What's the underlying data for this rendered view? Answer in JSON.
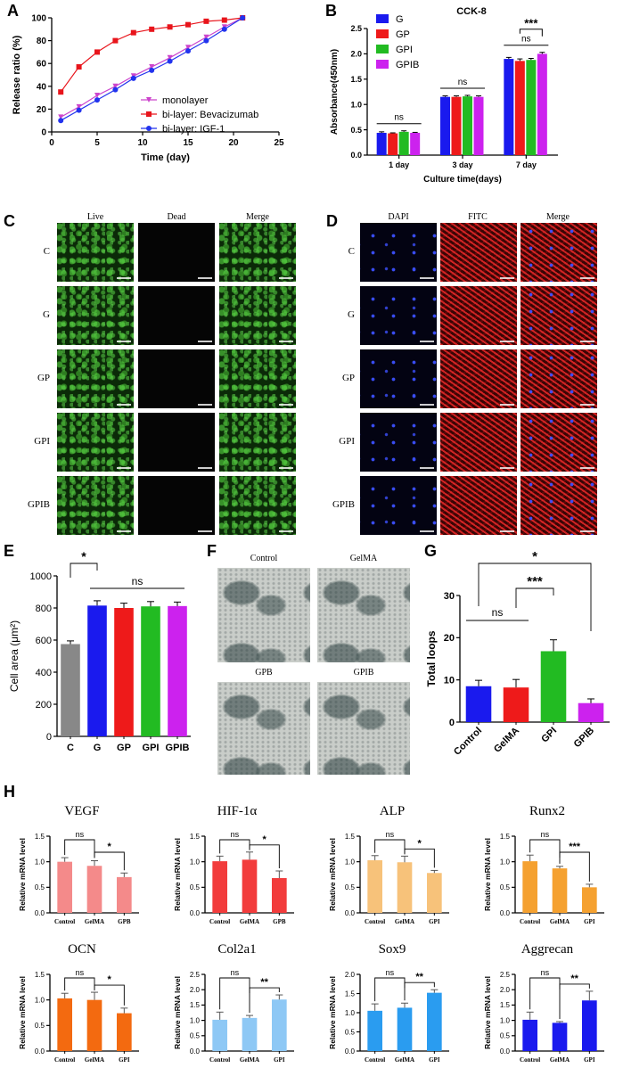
{
  "panel_labels": [
    "A",
    "B",
    "C",
    "D",
    "E",
    "F",
    "G",
    "H"
  ],
  "panel_c": {
    "columns": [
      "Live",
      "Dead",
      "Merge"
    ],
    "rows": [
      "C",
      "G",
      "GP",
      "GPI",
      "GPIB"
    ]
  },
  "panel_d": {
    "columns": [
      "DAPI",
      "FITC",
      "Merge"
    ],
    "rows": [
      "C",
      "G",
      "GP",
      "GPI",
      "GPIB"
    ]
  },
  "panel_f": {
    "images": [
      "Control",
      "GelMA",
      "GPB",
      "GPIB"
    ]
  },
  "chart_data": [
    {
      "id": "A",
      "type": "line",
      "xlabel": "Time (day)",
      "ylabel": "Release ratio (%)",
      "xlim": [
        0,
        25
      ],
      "ylim": [
        0,
        100
      ],
      "xticks": [
        0,
        5,
        10,
        15,
        20,
        25
      ],
      "yticks": [
        0,
        20,
        40,
        60,
        80,
        100
      ],
      "legend_position": "lower-right",
      "series": [
        {
          "name": "monolayer",
          "color": "#cc44cc",
          "marker": "triangle-down",
          "x": [
            1,
            3,
            5,
            7,
            9,
            11,
            13,
            15,
            17,
            19,
            21
          ],
          "y": [
            13,
            22,
            32,
            40,
            49,
            57,
            65,
            74,
            83,
            92,
            100
          ]
        },
        {
          "name": "bi-layer: Bevacizumab",
          "color": "#e8141b",
          "marker": "square",
          "x": [
            1,
            3,
            5,
            7,
            9,
            11,
            13,
            15,
            17,
            19,
            21
          ],
          "y": [
            35,
            57,
            70,
            80,
            87,
            90,
            92,
            94,
            97,
            98,
            100
          ]
        },
        {
          "name": "bi-layer: IGF-1",
          "color": "#2233ee",
          "marker": "circle",
          "x": [
            1,
            3,
            5,
            7,
            9,
            11,
            13,
            15,
            17,
            19,
            21
          ],
          "y": [
            10,
            19,
            28,
            37,
            47,
            54,
            62,
            71,
            80,
            90,
            100
          ]
        }
      ]
    },
    {
      "id": "B",
      "type": "bar",
      "title": "CCK-8",
      "xlabel": "Culture time(days)",
      "ylabel": "Absorbance(450nm)",
      "ylim": [
        0,
        2.5
      ],
      "yticks": [
        "0.0",
        "0.5",
        "1.0",
        "1.5",
        "2.0",
        "2.5"
      ],
      "categories": [
        "1 day",
        "3 day",
        "7 day"
      ],
      "legend_position": "top-left",
      "series": [
        {
          "name": "G",
          "color": "#1a1aee",
          "values": [
            0.44,
            1.15,
            1.9
          ],
          "errors": [
            0.02,
            0.02,
            0.03
          ]
        },
        {
          "name": "GP",
          "color": "#ee1a1a",
          "values": [
            0.43,
            1.15,
            1.86
          ],
          "errors": [
            0.01,
            0.02,
            0.04
          ]
        },
        {
          "name": "GPI",
          "color": "#22bb22",
          "values": [
            0.46,
            1.16,
            1.88
          ],
          "errors": [
            0.02,
            0.02,
            0.03
          ]
        },
        {
          "name": "GPIB",
          "color": "#cc22ee",
          "values": [
            0.44,
            1.15,
            2.0
          ],
          "errors": [
            0.01,
            0.02,
            0.03
          ]
        }
      ],
      "annotations": [
        "ns",
        "ns",
        "ns",
        "***"
      ]
    },
    {
      "id": "E",
      "type": "bar",
      "ylabel": "Cell area (μm²)",
      "ylim": [
        0,
        1000
      ],
      "yticks": [
        "0",
        "200",
        "400",
        "600",
        "800",
        "1000"
      ],
      "categories": [
        "C",
        "G",
        "GP",
        "GPI",
        "GPIB"
      ],
      "values": [
        575,
        815,
        800,
        810,
        812
      ],
      "errors": [
        20,
        30,
        30,
        30,
        25
      ],
      "colors": [
        "#888888",
        "#1a1aee",
        "#ee1a1a",
        "#22bb22",
        "#cc22ee"
      ],
      "annotations": [
        "*",
        "ns"
      ]
    },
    {
      "id": "G",
      "type": "bar",
      "ylabel": "Total loops",
      "ylim": [
        0,
        30
      ],
      "yticks": [
        "0",
        "10",
        "20",
        "30"
      ],
      "categories": [
        "Control",
        "GelMA",
        "GPI",
        "GPIB"
      ],
      "values": [
        8.5,
        8.2,
        16.8,
        4.5
      ],
      "errors": [
        1.4,
        1.9,
        2.7,
        1.0
      ],
      "colors": [
        "#1a1aee",
        "#ee1a1a",
        "#22bb22",
        "#cc22ee"
      ],
      "annotations": [
        "ns",
        "***",
        "*"
      ]
    },
    {
      "id": "H-VEGF",
      "type": "bar",
      "title": "VEGF",
      "ylabel": "Relative mRNA level",
      "ylim": [
        0,
        1.5
      ],
      "yticks": [
        "0.0",
        "0.5",
        "1.0",
        "1.5"
      ],
      "categories": [
        "Control",
        "GelMA",
        "GPB"
      ],
      "values": [
        1.0,
        0.92,
        0.7
      ],
      "errors": [
        0.08,
        0.1,
        0.08
      ],
      "color": "#f48a8a",
      "annotations": [
        "ns",
        "*"
      ]
    },
    {
      "id": "H-HIF",
      "type": "bar",
      "title": "HIF-1α",
      "ylabel": "Relative mRNA level",
      "ylim": [
        0,
        1.5
      ],
      "yticks": [
        "0.0",
        "0.5",
        "1.0",
        "1.5"
      ],
      "categories": [
        "Control",
        "GelMA",
        "GPB"
      ],
      "values": [
        1.01,
        1.04,
        0.68
      ],
      "errors": [
        0.1,
        0.15,
        0.14
      ],
      "color": "#f23c3c",
      "annotations": [
        "ns",
        "*"
      ]
    },
    {
      "id": "H-ALP",
      "type": "bar",
      "title": "ALP",
      "ylabel": "Relative mRNA level",
      "ylim": [
        0,
        1.5
      ],
      "yticks": [
        "0.0",
        "0.5",
        "1.0",
        "1.5"
      ],
      "categories": [
        "Control",
        "GelMA",
        "GPI"
      ],
      "values": [
        1.03,
        0.99,
        0.78
      ],
      "errors": [
        0.09,
        0.12,
        0.05
      ],
      "color": "#f7c27a",
      "annotations": [
        "ns",
        "*"
      ]
    },
    {
      "id": "H-Runx2",
      "type": "bar",
      "title": "Runx2",
      "ylabel": "Relative mRNA level",
      "ylim": [
        0,
        1.5
      ],
      "yticks": [
        "0.0",
        "0.5",
        "1.0",
        "1.5"
      ],
      "categories": [
        "Control",
        "GelMA",
        "GPI"
      ],
      "values": [
        1.01,
        0.87,
        0.5
      ],
      "errors": [
        0.12,
        0.04,
        0.06
      ],
      "color": "#f5a130",
      "annotations": [
        "ns",
        "***"
      ]
    },
    {
      "id": "H-OCN",
      "type": "bar",
      "title": "OCN",
      "ylabel": "Relative mRNA level",
      "ylim": [
        0,
        1.5
      ],
      "yticks": [
        "0.0",
        "0.5",
        "1.0",
        "1.5"
      ],
      "categories": [
        "Control",
        "GelMA",
        "GPI"
      ],
      "values": [
        1.03,
        1.0,
        0.74
      ],
      "errors": [
        0.1,
        0.15,
        0.1
      ],
      "color": "#f36a10",
      "annotations": [
        "ns",
        "*"
      ]
    },
    {
      "id": "H-Col2a1",
      "type": "bar",
      "title": "Col2a1",
      "ylabel": "Relative mRNA level",
      "ylim": [
        0,
        2.5
      ],
      "yticks": [
        "0.0",
        "0.5",
        "1.0",
        "1.5",
        "2.0",
        "2.5"
      ],
      "categories": [
        "Control",
        "GelMA",
        "GPI"
      ],
      "values": [
        1.02,
        1.08,
        1.68
      ],
      "errors": [
        0.25,
        0.08,
        0.15
      ],
      "color": "#8ec8f5",
      "annotations": [
        "ns",
        "**"
      ]
    },
    {
      "id": "H-Sox9",
      "type": "bar",
      "title": "Sox9",
      "ylabel": "Relative mRNA level",
      "ylim": [
        0,
        2.0
      ],
      "yticks": [
        "0.0",
        "0.5",
        "1.0",
        "1.5",
        "2.0"
      ],
      "categories": [
        "Control",
        "GelMA",
        "GPI"
      ],
      "values": [
        1.05,
        1.13,
        1.52
      ],
      "errors": [
        0.18,
        0.12,
        0.08
      ],
      "color": "#2a9cf0",
      "annotations": [
        "ns",
        "**"
      ]
    },
    {
      "id": "H-Aggrecan",
      "type": "bar",
      "title": "Aggrecan",
      "ylabel": "Relative mRNA level",
      "ylim": [
        0,
        2.5
      ],
      "yticks": [
        "0.0",
        "0.5",
        "1.0",
        "1.5",
        "2.0",
        "2.5"
      ],
      "categories": [
        "Control",
        "GelMA",
        "GPI"
      ],
      "values": [
        1.02,
        0.92,
        1.65
      ],
      "errors": [
        0.25,
        0.04,
        0.3
      ],
      "color": "#1a1aee",
      "annotations": [
        "ns",
        "**"
      ]
    }
  ]
}
